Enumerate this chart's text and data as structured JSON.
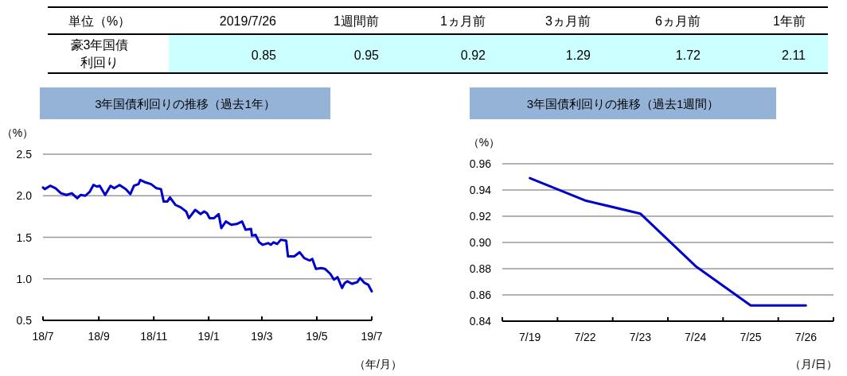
{
  "chart_data": [
    {
      "type": "other",
      "title": "単位（%）",
      "ylabel": "豪3年国債利回り",
      "categories": [
        "2019/7/26",
        "1週間前",
        "1ヵ月前",
        "3ヵ月前",
        "6ヵ月前",
        "1年前"
      ],
      "values": [
        0.85,
        0.95,
        0.92,
        1.29,
        1.72,
        2.11
      ],
      "data_labels": true,
      "color": "#ccffff"
    },
    {
      "type": "line",
      "title": "3年国債利回りの推移（過去1年）",
      "ylabel": "（%）",
      "xlabel": "（年/月）",
      "grid": "y",
      "xlim": [
        "2018-07-26",
        "2019-07-26"
      ],
      "xticks": [
        {
          "value": "2018-07-26",
          "label": "18/7"
        },
        {
          "value": "2018-09-26",
          "label": "18/9"
        },
        {
          "value": "2018-11-26",
          "label": "18/11"
        },
        {
          "value": "2019-01-26",
          "label": "19/1"
        },
        {
          "value": "2019-03-26",
          "label": "19/3"
        },
        {
          "value": "2019-05-26",
          "label": "19/5"
        },
        {
          "value": "2019-07-26",
          "label": "19/7"
        }
      ],
      "ylim": [
        0.5,
        2.5
      ],
      "yticks": [
        {
          "value": 0.5,
          "label": "0.5"
        },
        {
          "value": 1,
          "label": "1.0"
        },
        {
          "value": 1.5,
          "label": "1.5"
        },
        {
          "value": 2,
          "label": "2.0"
        },
        {
          "value": 2.5,
          "label": "2.5"
        }
      ],
      "x": [
        "2018-07-26",
        "2018-07-28",
        "2018-08-03",
        "2018-08-09",
        "2018-08-15",
        "2018-08-21",
        "2018-08-27",
        "2018-09-02",
        "2018-09-06",
        "2018-09-11",
        "2018-09-16",
        "2018-09-20",
        "2018-09-24",
        "2018-09-27",
        "2018-10-03",
        "2018-10-09",
        "2018-10-13",
        "2018-10-19",
        "2018-10-26",
        "2018-10-31",
        "2018-11-04",
        "2018-11-09",
        "2018-11-11",
        "2018-11-17",
        "2018-11-23",
        "2018-11-29",
        "2018-12-04",
        "2018-12-07",
        "2018-12-11",
        "2018-12-14",
        "2018-12-20",
        "2018-12-26",
        "2019-01-01",
        "2019-01-04",
        "2019-01-11",
        "2019-01-17",
        "2019-01-21",
        "2019-01-24",
        "2019-01-27",
        "2019-02-01",
        "2019-02-06",
        "2019-02-09",
        "2019-02-14",
        "2019-02-20",
        "2019-02-26",
        "2019-03-04",
        "2019-03-08",
        "2019-03-14",
        "2019-03-15",
        "2019-03-19",
        "2019-03-23",
        "2019-03-27",
        "2019-04-02",
        "2019-04-05",
        "2019-04-08",
        "2019-04-12",
        "2019-04-16",
        "2019-04-22",
        "2019-04-24",
        "2019-05-01",
        "2019-05-07",
        "2019-05-12",
        "2019-05-18",
        "2019-05-21",
        "2019-05-25",
        "2019-05-31",
        "2019-06-04",
        "2019-06-10",
        "2019-06-14",
        "2019-06-18",
        "2019-06-23",
        "2019-06-26",
        "2019-06-29",
        "2019-07-04",
        "2019-07-10",
        "2019-07-13",
        "2019-07-18",
        "2019-07-22",
        "2019-07-26"
      ],
      "series": [
        {
          "color": "#0000cc",
          "values": [
            2.1,
            2.08,
            2.12,
            2.09,
            2.03,
            2.01,
            2.03,
            1.97,
            2.01,
            2.0,
            2.05,
            2.13,
            2.11,
            2.12,
            2.01,
            2.12,
            2.09,
            2.13,
            2.08,
            2.02,
            2.12,
            2.14,
            2.19,
            2.16,
            2.14,
            2.09,
            2.08,
            1.93,
            1.93,
            1.98,
            1.89,
            1.86,
            1.81,
            1.73,
            1.83,
            1.78,
            1.81,
            1.79,
            1.73,
            1.73,
            1.78,
            1.61,
            1.69,
            1.65,
            1.66,
            1.69,
            1.59,
            1.6,
            1.52,
            1.53,
            1.44,
            1.41,
            1.43,
            1.41,
            1.44,
            1.42,
            1.47,
            1.46,
            1.27,
            1.27,
            1.32,
            1.25,
            1.22,
            1.24,
            1.12,
            1.13,
            1.12,
            1.06,
            0.99,
            1.02,
            0.89,
            0.95,
            0.97,
            0.94,
            0.96,
            1.01,
            0.95,
            0.93,
            0.85
          ]
        }
      ]
    },
    {
      "type": "line",
      "title": "3年国債利回りの推移（過去1週間）",
      "ylabel": "（%）",
      "xlabel": "（月/日）",
      "grid": "y",
      "categories": [
        "7/19",
        "7/22",
        "7/23",
        "7/24",
        "7/25",
        "7/26"
      ],
      "ylim": [
        0.84,
        0.96
      ],
      "yticks": [
        {
          "value": 0.84,
          "label": "0.84"
        },
        {
          "value": 0.86,
          "label": "0.86"
        },
        {
          "value": 0.88,
          "label": "0.88"
        },
        {
          "value": 0.9,
          "label": "0.90"
        },
        {
          "value": 0.92,
          "label": "0.92"
        },
        {
          "value": 0.94,
          "label": "0.94"
        },
        {
          "value": 0.96,
          "label": "0.96"
        }
      ],
      "series": [
        {
          "color": "#0000cc",
          "values": [
            0.949,
            0.932,
            0.922,
            0.882,
            0.852,
            0.852
          ]
        }
      ]
    }
  ]
}
